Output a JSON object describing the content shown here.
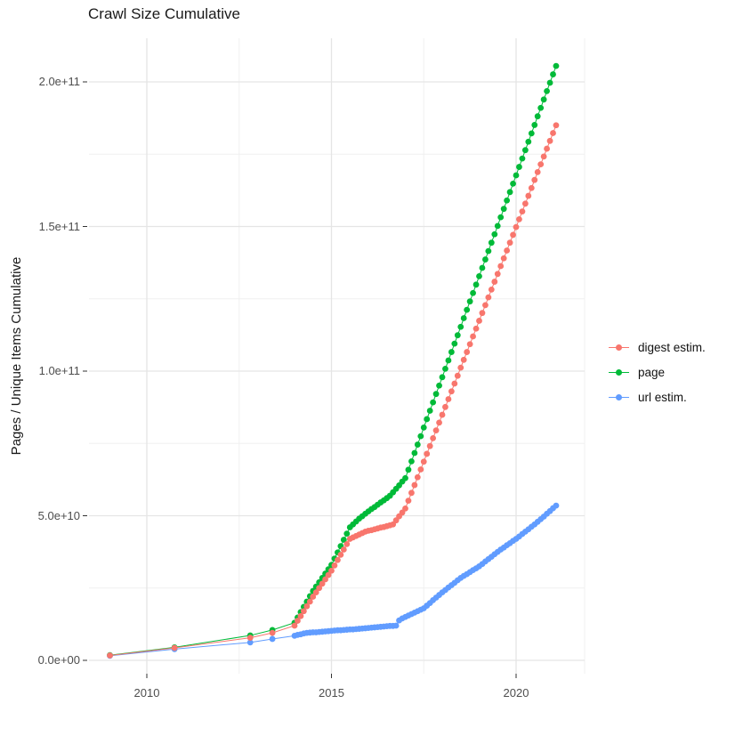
{
  "title": "Crawl Size Cumulative",
  "y_axis": {
    "title": "Pages / Unique Items Cumulative",
    "tick_labels": [
      "0.0e+00",
      "5.0e+10",
      "1.0e+11",
      "1.5e+11",
      "2.0e+11"
    ]
  },
  "x_axis": {
    "tick_labels": [
      "2010",
      "2015",
      "2020"
    ]
  },
  "legend": {
    "items": [
      {
        "label": "digest estim.",
        "color": "#F8766D"
      },
      {
        "label": "page",
        "color": "#00BA38"
      },
      {
        "label": "url estim.",
        "color": "#619CFF"
      }
    ]
  },
  "colors": {
    "background": "#FFFFFF",
    "grid_major": "#E5E5E5",
    "grid_minor": "#F0F0F0",
    "axis_tick": "#333333",
    "axis_text": "#4D4D4D",
    "title_text": "#1A1A1A"
  },
  "chart_data": {
    "type": "scatter",
    "title": "Crawl Size Cumulative",
    "xlabel": "",
    "ylabel": "Pages / Unique Items Cumulative",
    "legend_position": "right",
    "grid": true,
    "values_unit": "1e9",
    "xlim": [
      2008.45,
      2021.9
    ],
    "ylim_e9": [
      -8,
      216
    ],
    "x_ticks": [
      2010,
      2015,
      2020
    ],
    "x_tick_labels": [
      "2010",
      "2015",
      "2020"
    ],
    "x_minor_ticks": [
      2012.5,
      2017.5
    ],
    "y_ticks_e9": [
      0,
      50,
      100,
      150,
      200
    ],
    "y_tick_labels": [
      "0.0e+00",
      "5.0e+10",
      "1.0e+11",
      "1.5e+11",
      "2.0e+11"
    ],
    "y_minor_ticks_e9": [
      25,
      75,
      125,
      175
    ],
    "x": [
      2009.0,
      2010.75,
      2012.8,
      2013.4,
      2014.0,
      2014.083,
      2014.167,
      2014.25,
      2014.333,
      2014.417,
      2014.5,
      2014.583,
      2014.667,
      2014.75,
      2014.833,
      2014.917,
      2015.0,
      2015.083,
      2015.167,
      2015.25,
      2015.333,
      2015.417,
      2015.5,
      2015.583,
      2015.667,
      2015.75,
      2015.833,
      2015.917,
      2016.0,
      2016.083,
      2016.167,
      2016.25,
      2016.333,
      2016.417,
      2016.5,
      2016.583,
      2016.667,
      2016.75,
      2016.833,
      2016.917,
      2017.0,
      2017.083,
      2017.167,
      2017.25,
      2017.333,
      2017.417,
      2017.5,
      2017.583,
      2017.667,
      2017.75,
      2017.833,
      2017.917,
      2018.0,
      2018.083,
      2018.167,
      2018.25,
      2018.333,
      2018.417,
      2018.5,
      2018.583,
      2018.667,
      2018.75,
      2018.833,
      2018.917,
      2019.0,
      2019.083,
      2019.167,
      2019.25,
      2019.333,
      2019.417,
      2019.5,
      2019.583,
      2019.667,
      2019.75,
      2019.833,
      2019.917,
      2020.0,
      2020.083,
      2020.167,
      2020.25,
      2020.333,
      2020.417,
      2020.5,
      2020.583,
      2020.667,
      2020.75,
      2020.833,
      2020.917,
      2021.0,
      2021.083
    ],
    "series": [
      {
        "name": "digest estim.",
        "color": "#F8766D",
        "values_e9": [
          1.7,
          4.3,
          7.8,
          9.5,
          12.0,
          13.7,
          15.3,
          17.0,
          18.7,
          20.3,
          22.0,
          23.5,
          25.0,
          26.5,
          28.0,
          29.5,
          31.0,
          32.8,
          34.7,
          36.5,
          38.3,
          40.2,
          42.0,
          42.5,
          43.0,
          43.5,
          44.0,
          44.5,
          44.8,
          45.0,
          45.3,
          45.6,
          45.9,
          46.1,
          46.4,
          46.7,
          47.0,
          48.4,
          49.8,
          51.1,
          52.5,
          55.2,
          57.9,
          60.6,
          63.3,
          66.0,
          68.7,
          71.4,
          74.1,
          76.8,
          79.5,
          82.2,
          84.9,
          87.6,
          90.3,
          93.0,
          95.7,
          98.4,
          101.2,
          103.9,
          106.6,
          109.3,
          112.0,
          114.7,
          117.4,
          120.1,
          122.8,
          125.5,
          128.2,
          130.9,
          133.6,
          136.3,
          139.0,
          141.7,
          144.4,
          147.1,
          149.8,
          152.5,
          155.2,
          157.9,
          160.6,
          163.3,
          166.1,
          168.8,
          171.5,
          174.2,
          176.9,
          179.6,
          182.3,
          185.0
        ]
      },
      {
        "name": "page",
        "color": "#00BA38",
        "values_e9": [
          1.8,
          4.5,
          8.6,
          10.5,
          13.0,
          14.8,
          16.7,
          18.5,
          20.3,
          22.2,
          24.0,
          25.5,
          27.0,
          28.5,
          30.0,
          31.5,
          33.0,
          35.2,
          37.3,
          39.5,
          41.7,
          43.8,
          46.0,
          47.0,
          48.0,
          49.0,
          49.8,
          50.7,
          51.5,
          52.3,
          53.0,
          53.8,
          54.6,
          55.3,
          56.1,
          56.9,
          58.1,
          59.3,
          60.5,
          61.8,
          63.0,
          65.9,
          68.8,
          71.7,
          74.6,
          77.5,
          80.5,
          83.4,
          86.3,
          89.2,
          92.1,
          95.0,
          97.9,
          100.8,
          103.7,
          106.6,
          109.5,
          112.4,
          115.3,
          118.3,
          121.2,
          124.1,
          127.0,
          129.9,
          132.8,
          135.7,
          138.6,
          141.5,
          144.4,
          147.3,
          150.2,
          153.2,
          156.1,
          159.0,
          161.9,
          164.8,
          167.7,
          170.6,
          173.5,
          176.4,
          179.3,
          182.2,
          185.1,
          188.1,
          191.0,
          193.9,
          196.8,
          199.7,
          202.6,
          205.5
        ]
      },
      {
        "name": "url estim.",
        "color": "#619CFF",
        "values_e9": [
          1.6,
          3.9,
          6.2,
          7.4,
          8.5,
          8.8,
          9.0,
          9.3,
          9.5,
          9.6,
          9.7,
          9.7,
          9.8,
          9.9,
          10.0,
          10.1,
          10.2,
          10.3,
          10.4,
          10.4,
          10.5,
          10.6,
          10.7,
          10.7,
          10.8,
          10.9,
          11.0,
          11.1,
          11.2,
          11.3,
          11.4,
          11.5,
          11.6,
          11.7,
          11.8,
          11.9,
          11.9,
          12.0,
          13.8,
          14.5,
          15.0,
          15.5,
          16.0,
          16.5,
          17.0,
          17.5,
          18.0,
          18.9,
          19.8,
          20.8,
          21.7,
          22.6,
          23.5,
          24.3,
          25.2,
          26.0,
          26.8,
          27.7,
          28.5,
          29.2,
          29.8,
          30.5,
          31.2,
          31.8,
          32.5,
          33.3,
          34.2,
          35.0,
          35.8,
          36.7,
          37.5,
          38.3,
          39.0,
          39.8,
          40.5,
          41.3,
          42.0,
          42.8,
          43.7,
          44.5,
          45.3,
          46.2,
          47.0,
          47.9,
          48.8,
          49.7,
          50.7,
          51.6,
          52.6,
          53.5
        ]
      }
    ]
  }
}
